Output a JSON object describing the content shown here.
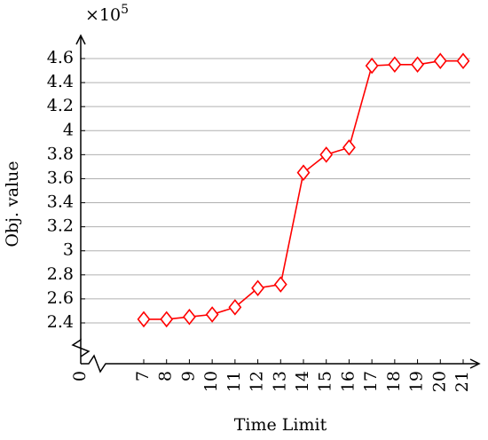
{
  "chart_data": {
    "type": "line",
    "x_label": "Time Limit",
    "y_label": "Obj. value",
    "y_multiplier": "×10",
    "y_multiplier_exponent": "5",
    "x": [
      7,
      8,
      9,
      10,
      11,
      12,
      13,
      14,
      15,
      16,
      17,
      18,
      19,
      20,
      21
    ],
    "series": [
      {
        "name": "Obj. value",
        "color": "#ff0000",
        "values": [
          2.43,
          2.43,
          2.45,
          2.47,
          2.53,
          2.69,
          2.72,
          3.65,
          3.8,
          3.86,
          4.54,
          4.55,
          4.55,
          4.58,
          4.58
        ]
      }
    ],
    "xlim": [
      7,
      21
    ],
    "xticks": [
      0,
      7,
      8,
      9,
      10,
      11,
      12,
      13,
      14,
      15,
      16,
      17,
      18,
      19,
      20,
      21
    ],
    "ylim": [
      2.4,
      4.6
    ],
    "yticks": [
      2.4,
      2.6,
      2.8,
      3,
      3.2,
      3.4,
      3.6,
      3.8,
      4,
      4.2,
      4.4,
      4.6
    ],
    "grid": true,
    "axis_break": true,
    "marker": "diamond"
  }
}
